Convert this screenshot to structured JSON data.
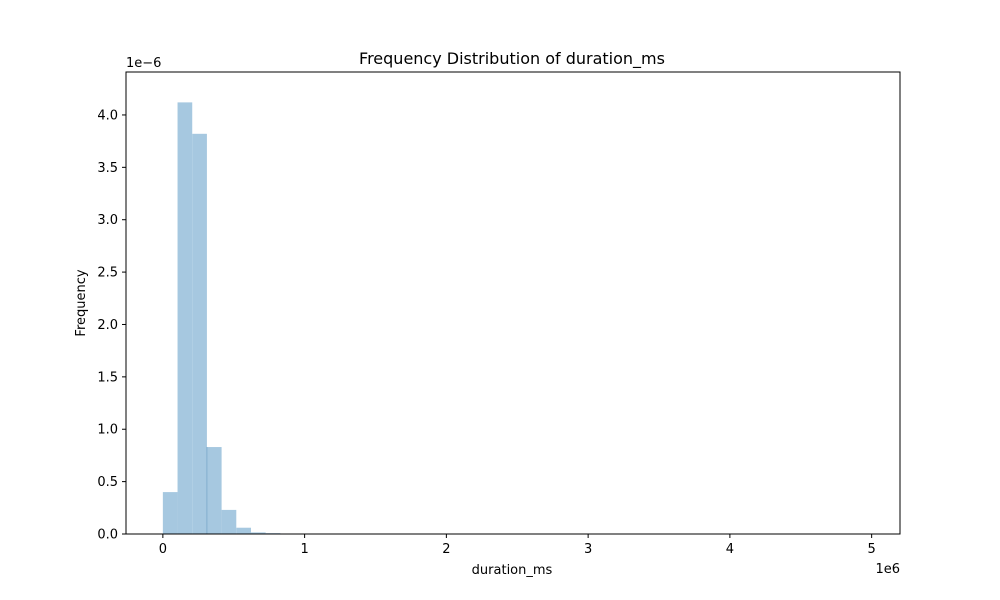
{
  "chart_data": {
    "type": "bar",
    "title": "Frequency Distribution of duration_ms",
    "xlabel": "duration_ms",
    "ylabel": "Frequency",
    "x_offset_label": "1e6",
    "y_offset_label": "1e−6",
    "xlim": [
      -0.26,
      5.2
    ],
    "ylim": [
      0,
      4.41
    ],
    "x_ticks": [
      0,
      1,
      2,
      3,
      4,
      5
    ],
    "x_tick_labels": [
      "0",
      "1",
      "2",
      "3",
      "4",
      "5"
    ],
    "y_ticks": [
      0.0,
      0.5,
      1.0,
      1.5,
      2.0,
      2.5,
      3.0,
      3.5,
      4.0
    ],
    "y_tick_labels": [
      "0.0",
      "0.5",
      "1.0",
      "1.5",
      "2.0",
      "2.5",
      "3.0",
      "3.5",
      "4.0"
    ],
    "bin_width": 0.1036,
    "bin_start": 0.0,
    "values": [
      0.4,
      4.12,
      3.82,
      0.83,
      0.23,
      0.06,
      0.015,
      0.008,
      0.004,
      0.002,
      0.001,
      0.0005
    ],
    "bar_color": "#a6c8e0",
    "bar_edge_color": "#7aa6c9"
  }
}
